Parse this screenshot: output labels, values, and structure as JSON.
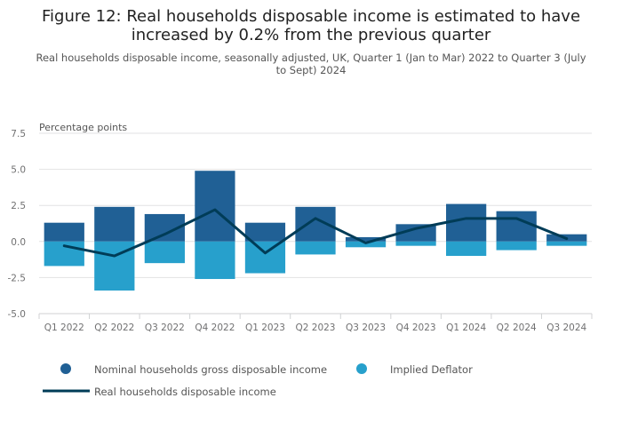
{
  "title": "Figure 12: Real households disposable income is estimated to have increased by 0.2% from the previous quarter",
  "subtitle": "Real households disposable income, seasonally adjusted, UK, Quarter 1 (Jan to Mar) 2022 to Quarter 3 (July to Sept) 2024",
  "colors": {
    "nominal": "#206095",
    "deflator": "#27a0cc",
    "real": "#003c57",
    "grid": "#e2e2e3",
    "axis": "#d0d2d3"
  },
  "chart_data": {
    "type": "bar",
    "ylabel": "Percentage points",
    "ylim": [
      -5.0,
      7.5
    ],
    "yticks": [
      "7.5",
      "5.0",
      "2.5",
      "0.0",
      "-2.5",
      "-5.0"
    ],
    "ytick_values": [
      7.5,
      5.0,
      2.5,
      0.0,
      -2.5,
      -5.0
    ],
    "categories": [
      "Q1 2022",
      "Q2 2022",
      "Q3 2022",
      "Q4 2022",
      "Q1 2023",
      "Q2 2023",
      "Q3 2023",
      "Q4 2023",
      "Q1 2024",
      "Q2 2024",
      "Q3 2024"
    ],
    "series": [
      {
        "name": "Nominal households gross disposable income",
        "kind": "bar",
        "values": [
          1.3,
          2.4,
          1.9,
          4.9,
          1.3,
          2.4,
          0.3,
          1.2,
          2.6,
          2.1,
          0.5
        ]
      },
      {
        "name": "Implied Deflator",
        "kind": "bar",
        "values": [
          -1.7,
          -3.4,
          -1.5,
          -2.6,
          -2.2,
          -0.9,
          -0.4,
          -0.3,
          -1.0,
          -0.6,
          -0.3
        ]
      },
      {
        "name": "Real households disposable income",
        "kind": "line",
        "values": [
          -0.3,
          -1.0,
          0.5,
          2.2,
          -0.8,
          1.6,
          -0.1,
          0.9,
          1.6,
          1.6,
          0.2
        ]
      }
    ],
    "legend_position": "bottom",
    "grid": true
  }
}
